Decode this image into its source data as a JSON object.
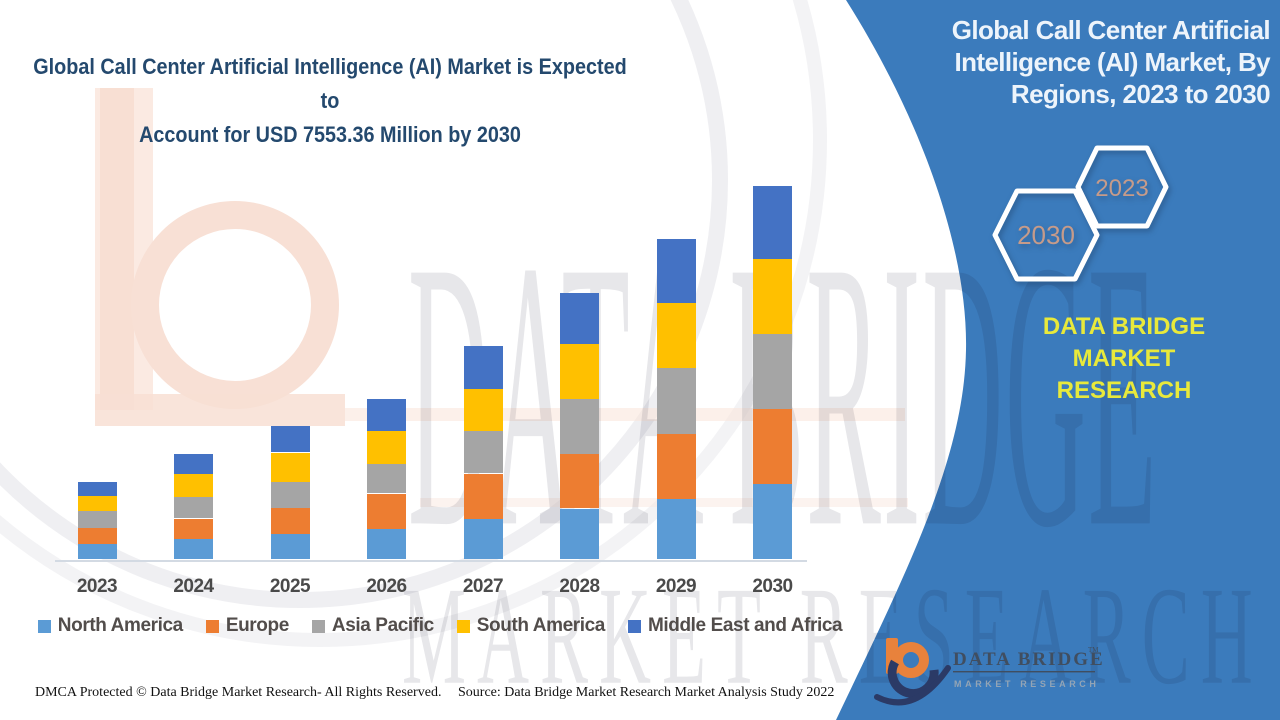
{
  "header": {
    "title_line1": "Global Call Center Artificial Intelligence (AI) Market is Expected to",
    "title_line2": "Account for USD 7553.36 Million by 2030"
  },
  "side_panel": {
    "panel_color": "#3B7BBC",
    "title_line1": "Global Call Center Artificial",
    "title_line2": "Intelligence (AI) Market, By",
    "title_line3": "Regions, 2023 to 2030",
    "hexagon_back_label": "2030",
    "hexagon_front_label": "2023",
    "hexagon_label_color": "#C69B8A",
    "brand_line1": "DATA BRIDGE MARKET",
    "brand_line2": "RESEARCH",
    "brand_color": "#E8E93B"
  },
  "watermark": {
    "line1": "DATA BRIDGE",
    "line2": "MARKET RESEARCH"
  },
  "logo": {
    "name": "DATA BRIDGE",
    "tm": "TM",
    "subtitle": "MARKET RESEARCH"
  },
  "footer": {
    "left": "DMCA Protected © Data Bridge Market Research- All Rights Reserved.",
    "right": "Source: Data Bridge Market Research Market Analysis Study 2022"
  },
  "chart_data": {
    "type": "bar",
    "stacked": true,
    "title": "Global Call Center Artificial Intelligence (AI) Market is Expected to Account for USD 7553.36 Million by 2030",
    "unit": "USD Million",
    "categories": [
      "2023",
      "2024",
      "2025",
      "2026",
      "2027",
      "2028",
      "2029",
      "2030"
    ],
    "series": [
      {
        "name": "North America",
        "color": "#5B9BD5",
        "values": [
          303,
          424,
          505,
          606,
          808,
          1030,
          1232,
          1515
        ]
      },
      {
        "name": "Europe",
        "color": "#ED7D31",
        "values": [
          343,
          404,
          545,
          727,
          929,
          1091,
          1293,
          1515
        ]
      },
      {
        "name": "Asia Pacific",
        "color": "#A5A5A5",
        "values": [
          343,
          444,
          525,
          586,
          868,
          1111,
          1333,
          1515
        ]
      },
      {
        "name": "South America",
        "color": "#FFC000",
        "values": [
          303,
          464,
          586,
          667,
          848,
          1111,
          1313,
          1515
        ]
      },
      {
        "name": "Middle East and Africa",
        "color": "#4472C4",
        "values": [
          283,
          404,
          545,
          646,
          868,
          1030,
          1293,
          1494
        ]
      }
    ],
    "totals_estimated": [
      1575,
      2140,
      2706,
      3232,
      4321,
      5373,
      6464,
      7553.36
    ],
    "ylim": [
      0,
      7600
    ],
    "gridlines": false,
    "y_axis_visible": false,
    "legend_position": "bottom"
  }
}
